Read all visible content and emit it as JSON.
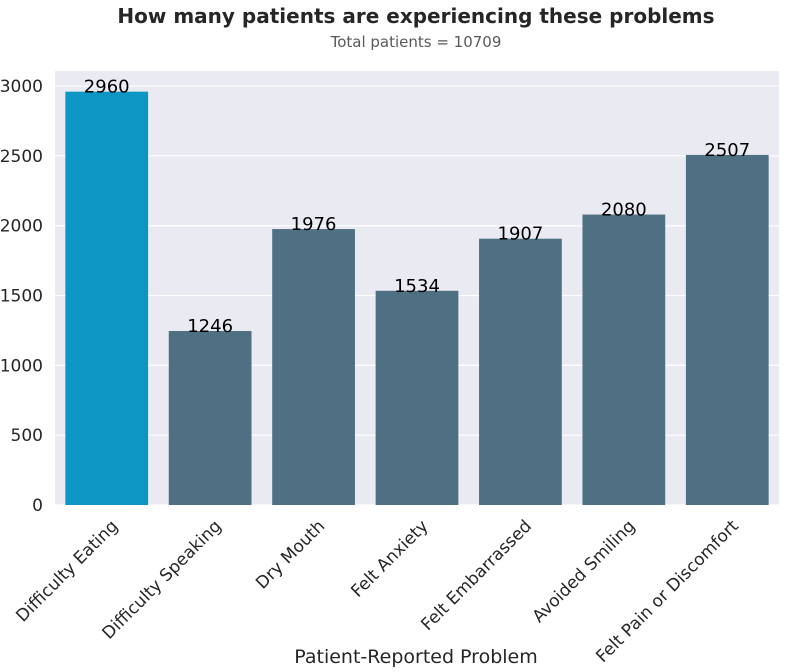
{
  "chart_data": {
    "type": "bar",
    "title": "How many patients are experiencing these problems",
    "subtitle": "Total patients = 10709",
    "xlabel": "Patient-Reported Problem",
    "ylabel": "",
    "categories": [
      "Difficulty Eating",
      "Difficulty Speaking",
      "Dry Mouth",
      "Felt Anxiety",
      "Felt Embarrassed",
      "Avoided Smiling",
      "Felt Pain or Discomfort"
    ],
    "values": [
      2960,
      1246,
      1976,
      1534,
      1907,
      2080,
      2507
    ],
    "data_labels": [
      "2960",
      "1246",
      "1976",
      "1534",
      "1907",
      "2080",
      "2507"
    ],
    "yticks": [
      0,
      500,
      1000,
      1500,
      2000,
      2500,
      3000
    ],
    "ytick_labels": [
      "0",
      "500",
      "1000",
      "1500",
      "2000",
      "2500",
      "3000"
    ],
    "ylim": [
      0,
      3108
    ],
    "grid": true,
    "colors": {
      "highlight": "#0b96c4",
      "bar": "#4f7082",
      "plot_background": "#eaeaf2",
      "grid": "#ffffff"
    },
    "highlight_index": 0
  }
}
